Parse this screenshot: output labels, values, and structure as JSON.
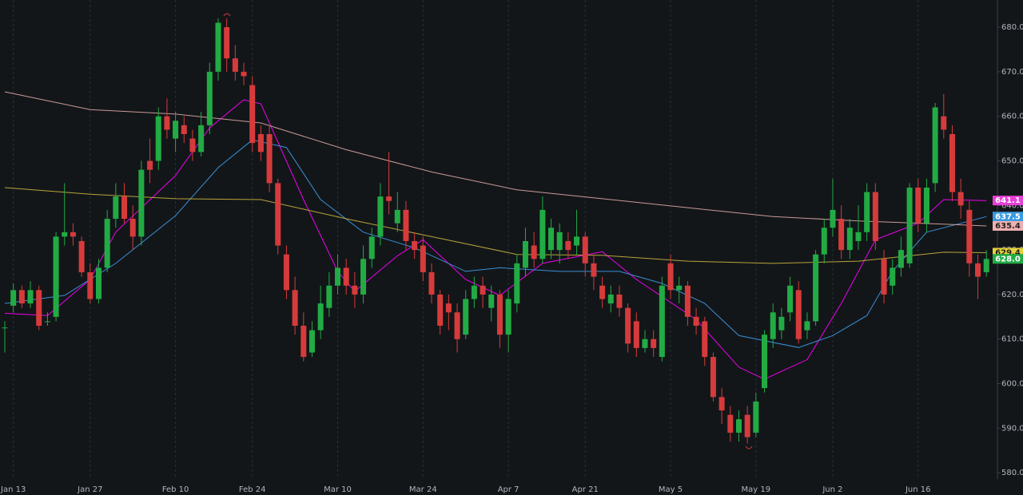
{
  "chart_data": {
    "type": "candlestick",
    "categories": [
      null,
      "Jan 13",
      null,
      null,
      null,
      null,
      null,
      null,
      null,
      null,
      "Jan 27",
      null,
      null,
      null,
      null,
      null,
      null,
      null,
      null,
      null,
      "Feb 10",
      null,
      null,
      null,
      null,
      null,
      null,
      null,
      null,
      "Feb 24",
      null,
      null,
      null,
      null,
      null,
      null,
      null,
      null,
      null,
      "Mar 10",
      null,
      null,
      null,
      null,
      null,
      null,
      null,
      null,
      null,
      "Mar 24",
      null,
      null,
      null,
      null,
      null,
      null,
      null,
      null,
      null,
      "Apr 7",
      null,
      null,
      null,
      null,
      null,
      null,
      null,
      null,
      "Apr 21",
      null,
      null,
      null,
      null,
      null,
      null,
      null,
      null,
      null,
      "May 5",
      null,
      null,
      null,
      null,
      null,
      null,
      null,
      null,
      null,
      "May 19",
      null,
      null,
      null,
      null,
      null,
      null,
      null,
      null,
      "Jun 2",
      null,
      null,
      null,
      null,
      null,
      null,
      null,
      null,
      null,
      "Jun 16",
      null,
      null,
      null,
      null,
      null,
      null,
      null,
      null
    ],
    "open": [
      612.6,
      617.5,
      621,
      618,
      621,
      614,
      615,
      633,
      634,
      632,
      625,
      619,
      626,
      637,
      642,
      637,
      633,
      650,
      650,
      660,
      655,
      658,
      655,
      652,
      658,
      670,
      680,
      673,
      670,
      667,
      656,
      656,
      645,
      629,
      621,
      613,
      607,
      612,
      617,
      622,
      626,
      622,
      620,
      628,
      633,
      642,
      636,
      639,
      632,
      631,
      625,
      620,
      618,
      616,
      611,
      619,
      622,
      617,
      620,
      611,
      618,
      626,
      631,
      628,
      630,
      630,
      632,
      631,
      633,
      627,
      622,
      618,
      620,
      617,
      614,
      608,
      610,
      606,
      627,
      621,
      622,
      615,
      614,
      606,
      597,
      593,
      589,
      593,
      589,
      599,
      610,
      612,
      616,
      621,
      612,
      614,
      629,
      635,
      637,
      630,
      632,
      634,
      643,
      628,
      622,
      626,
      627,
      644,
      636,
      645,
      660,
      656,
      643,
      639,
      627,
      625
    ],
    "high": [
      614,
      622.5,
      622,
      623,
      622,
      616,
      634,
      645,
      636,
      633,
      627,
      628,
      639,
      645,
      645,
      640,
      650,
      655,
      662,
      664,
      661,
      660,
      657,
      661,
      672,
      682,
      682,
      676,
      672,
      669,
      658,
      658,
      646,
      631,
      624,
      616,
      614,
      622,
      625,
      629,
      628,
      625,
      631,
      635,
      645,
      652,
      643,
      641,
      634,
      633,
      627,
      621,
      620,
      618,
      621,
      624,
      624,
      622,
      621,
      621,
      629,
      635,
      634,
      642,
      637,
      636,
      634,
      639,
      634,
      629,
      624,
      622,
      622,
      618,
      616,
      612,
      612,
      624,
      629,
      624,
      623,
      617,
      615,
      607,
      599,
      595,
      594,
      595,
      598,
      612,
      618,
      617,
      624,
      623,
      616,
      630,
      637,
      646,
      640,
      637,
      640,
      645,
      645,
      630,
      628,
      633,
      645,
      646,
      646,
      663,
      665,
      658,
      646,
      641,
      629,
      630
    ],
    "low": [
      607,
      616,
      617,
      617,
      612,
      613,
      614,
      631,
      631,
      624,
      618,
      618,
      625,
      635,
      636,
      630,
      631,
      645,
      648,
      655,
      652,
      654,
      650,
      651,
      656,
      668,
      670,
      668,
      667,
      652,
      650,
      643,
      629,
      619,
      611,
      605,
      606,
      610,
      615,
      620,
      620,
      617,
      618,
      626,
      631,
      638,
      634,
      630,
      628,
      623,
      618,
      611,
      612,
      607,
      610,
      617,
      617,
      614,
      608,
      607,
      616,
      624,
      626,
      627,
      628,
      627,
      628,
      629,
      624,
      621,
      617,
      616,
      615,
      607,
      606,
      607,
      606,
      605,
      619,
      618,
      613,
      611,
      604,
      596,
      591,
      587,
      587,
      586.6,
      588,
      598,
      608,
      610,
      614,
      609,
      610,
      613,
      627,
      633,
      628,
      628,
      630,
      632,
      630,
      618,
      620,
      624,
      626,
      634,
      634,
      643,
      655,
      641,
      637,
      624,
      619,
      624
    ],
    "close": [
      612.6,
      621,
      618,
      621,
      613,
      614,
      633,
      634,
      633,
      625,
      619,
      626,
      637,
      642,
      637,
      633,
      648,
      648,
      660,
      657,
      659,
      656,
      652,
      658,
      670,
      681,
      673,
      670,
      669,
      654,
      652,
      645,
      631,
      621,
      613,
      606,
      612,
      618,
      622,
      626,
      622,
      620,
      628,
      633,
      642,
      641,
      639,
      632,
      630,
      625,
      620,
      613,
      616,
      610,
      619,
      622,
      620,
      620,
      611,
      619,
      627,
      632,
      628,
      639,
      635,
      634,
      630,
      633,
      627,
      624,
      619,
      620,
      617,
      609,
      608,
      610,
      608,
      622,
      621,
      622,
      615,
      613,
      606,
      597,
      594,
      589,
      592,
      588,
      596,
      611,
      616,
      615,
      622,
      610,
      614,
      629,
      635,
      639,
      630,
      635,
      634,
      643,
      632,
      620,
      626,
      630,
      644,
      636,
      644,
      662,
      657,
      643,
      640,
      627,
      624,
      628
    ],
    "up_color": "#22ab44",
    "down_color": "#d63b3b",
    "overlays": [
      {
        "color": "#e0e",
        "x": [
          0,
          5,
          10,
          13,
          20,
          24,
          28,
          30,
          35,
          39,
          41,
          46,
          49,
          54,
          58,
          63,
          70,
          74,
          81,
          86,
          89,
          94,
          98,
          102,
          107,
          110,
          115
        ],
        "values": [
          615.8,
          615.3,
          623.4,
          634,
          646.7,
          657.4,
          663.7,
          662.8,
          641.3,
          625.2,
          620.7,
          628.7,
          632.3,
          623.4,
          619.8,
          627,
          629.6,
          623.4,
          614.4,
          603.7,
          601,
          605.4,
          618,
          632.3,
          636,
          641.3,
          641.1
        ]
      },
      {
        "color": "#3a8fd6",
        "x": [
          0,
          7,
          13,
          20,
          25,
          29,
          33,
          37,
          42,
          48,
          54,
          58,
          65,
          72,
          77,
          82,
          86,
          93,
          97,
          101,
          104,
          108,
          115
        ],
        "values": [
          618,
          619.8,
          627,
          637.7,
          648.5,
          654.7,
          653,
          641.3,
          634,
          630.5,
          625.2,
          626,
          625.2,
          625.2,
          622.5,
          618,
          610.8,
          608.1,
          610.8,
          615.3,
          625.2,
          634,
          637.5
        ]
      },
      {
        "color": "#b8a43a",
        "x": [
          0,
          10,
          20,
          30,
          40,
          50,
          60,
          70,
          80,
          90,
          100,
          110,
          115
        ],
        "values": [
          644,
          642.5,
          641.5,
          641.3,
          637,
          633,
          629,
          628.8,
          627.5,
          627,
          627.5,
          629.5,
          629.4
        ]
      },
      {
        "color": "#c99a98",
        "x": [
          0,
          10,
          20,
          30,
          40,
          50,
          60,
          70,
          80,
          90,
          100,
          110,
          115
        ],
        "values": [
          665.5,
          661.5,
          660.5,
          658.5,
          652.5,
          647.5,
          643.5,
          641.5,
          639.5,
          637.5,
          636.5,
          635.8,
          635.4
        ]
      }
    ],
    "badges": [
      {
        "value": 641.1,
        "label": "641.1",
        "color": "#e83fd8",
        "text_color": "#ffffff"
      },
      {
        "value": 637.5,
        "label": "637.5",
        "color": "#3a9be0",
        "text_color": "#ffffff"
      },
      {
        "value": 635.4,
        "label": "635.4",
        "color": "#f0b0b0",
        "text_color": "#222222"
      },
      {
        "value": 629.4,
        "label": "629.4",
        "color": "#e6d13c",
        "text_color": "#222222"
      },
      {
        "value": 628.0,
        "label": "628.0",
        "color": "#22ab44",
        "text_color": "#ffffff"
      }
    ],
    "ylim": [
      578.6,
      686.1
    ],
    "yticks": [
      {
        "value": 580,
        "label": "580.0"
      },
      {
        "value": 590,
        "label": "590.0"
      },
      {
        "value": 600,
        "label": "600.0"
      },
      {
        "value": 610,
        "label": "610.0"
      },
      {
        "value": 620,
        "label": "620.0"
      },
      {
        "value": 630,
        "label": "630.0"
      },
      {
        "value": 640,
        "label": "640.0"
      },
      {
        "value": 650,
        "label": "650.0"
      },
      {
        "value": 660,
        "label": "660.0"
      },
      {
        "value": 670,
        "label": "670.0"
      },
      {
        "value": 680,
        "label": "680.0"
      }
    ]
  }
}
